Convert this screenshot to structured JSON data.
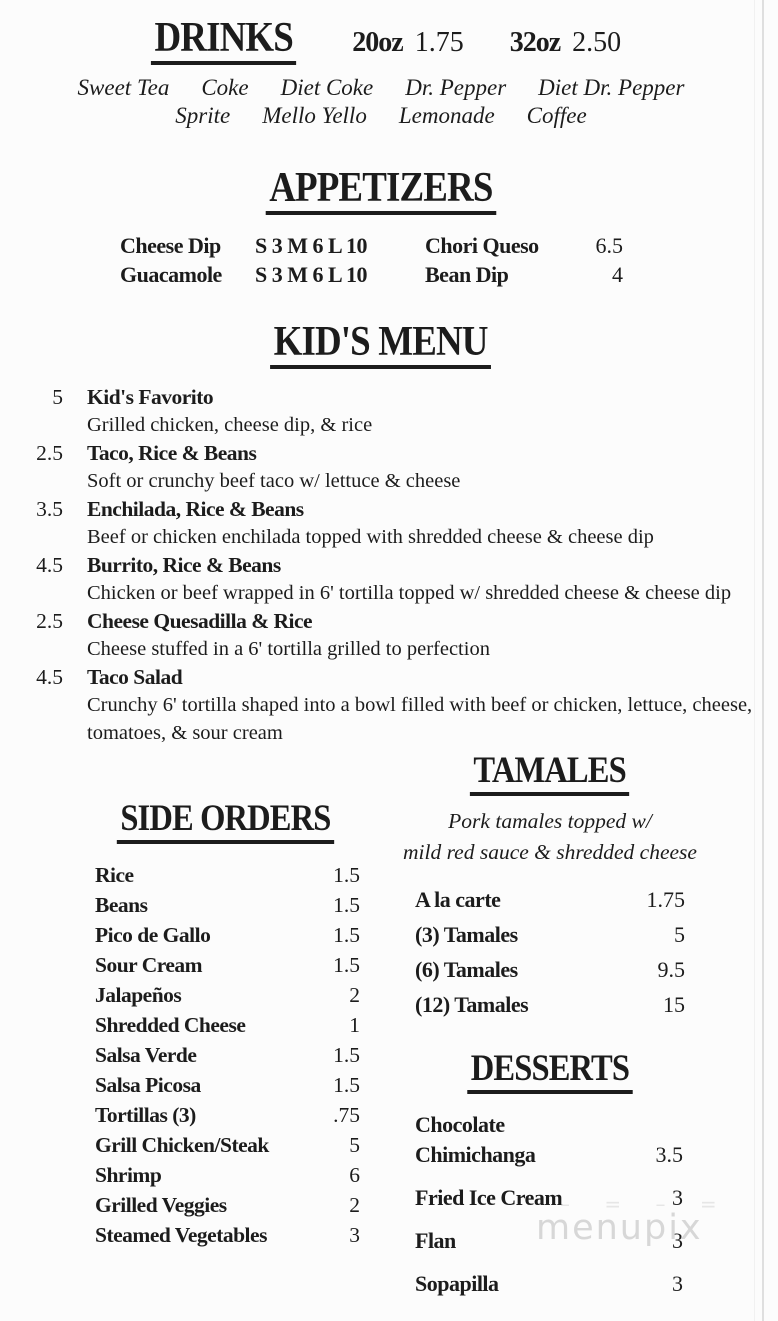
{
  "watermark": {
    "text": "menupix",
    "dashes": "– = – =",
    "color": "#d7d7d7"
  },
  "ink_color": "#1c1c1c",
  "drinks": {
    "title": "DRINKS",
    "sizes": [
      {
        "size": "20oz",
        "price": "1.75"
      },
      {
        "size": "32oz",
        "price": "2.50"
      }
    ],
    "row1": [
      "Sweet Tea",
      "Coke",
      "Diet Coke",
      "Dr. Pepper",
      "Diet Dr. Pepper"
    ],
    "row2": [
      "Sprite",
      "Mello Yello",
      "Lemonade",
      "Coffee"
    ]
  },
  "appetizers": {
    "title": "APPETIZERS",
    "rows": [
      {
        "name": "Cheese Dip",
        "sizes": "S 3  M 6  L 10",
        "name2": "Chori Queso",
        "price2": "6.5"
      },
      {
        "name": "Guacamole",
        "sizes": "S 3  M 6  L 10",
        "name2": "Bean Dip",
        "price2": "4"
      }
    ]
  },
  "kids_menu": {
    "title": "KID'S MENU",
    "items": [
      {
        "price": "5",
        "name": "Kid's Favorito",
        "description": "Grilled chicken, cheese dip, & rice"
      },
      {
        "price": "2.5",
        "name": "Taco, Rice & Beans",
        "description": "Soft or crunchy beef taco w/ lettuce & cheese"
      },
      {
        "price": "3.5",
        "name": "Enchilada, Rice & Beans",
        "description": "Beef or chicken enchilada topped with shredded cheese & cheese dip"
      },
      {
        "price": "4.5",
        "name": "Burrito, Rice & Beans",
        "description": "Chicken or beef wrapped in  6' tortilla topped w/ shredded cheese & cheese dip"
      },
      {
        "price": "2.5",
        "name": "Cheese Quesadilla & Rice",
        "description": "Cheese stuffed in a 6' tortilla grilled to perfection"
      },
      {
        "price": "4.5",
        "name": "Taco Salad",
        "description": "Crunchy 6' tortilla shaped into a bowl filled with beef or chicken, lettuce, cheese, tomatoes, & sour cream"
      }
    ]
  },
  "side_orders": {
    "title": "SIDE ORDERS",
    "items": [
      {
        "name": "Rice",
        "price": "1.5"
      },
      {
        "name": "Beans",
        "price": "1.5"
      },
      {
        "name": "Pico de Gallo",
        "price": "1.5"
      },
      {
        "name": "Sour Cream",
        "price": "1.5"
      },
      {
        "name": "Jalapeños",
        "price": "2"
      },
      {
        "name": "Shredded Cheese",
        "price": "1"
      },
      {
        "name": "Salsa Verde",
        "price": "1.5"
      },
      {
        "name": "Salsa Picosa",
        "price": "1.5"
      },
      {
        "name": "Tortillas (3)",
        "price": ".75"
      },
      {
        "name": "Grill Chicken/Steak",
        "price": "5"
      },
      {
        "name": "Shrimp",
        "price": "6"
      },
      {
        "name": "Grilled Veggies",
        "price": "2"
      },
      {
        "name": "Steamed Vegetables",
        "price": "3"
      }
    ]
  },
  "tamales": {
    "title": "TAMALES",
    "note_line1": "Pork tamales topped w/",
    "note_line2": "mild red sauce & shredded cheese",
    "items": [
      {
        "name": "A la carte",
        "price": "1.75"
      },
      {
        "name": "(3) Tamales",
        "price": "5"
      },
      {
        "name": "(6) Tamales",
        "price": "9.5"
      },
      {
        "name": "(12) Tamales",
        "price": "15"
      }
    ]
  },
  "desserts": {
    "title": "DESSERTS",
    "items": [
      {
        "name": "Chocolate Chimichanga",
        "price": "3.5"
      },
      {
        "name": "Fried Ice Cream",
        "price": "3"
      },
      {
        "name": "Flan",
        "price": "3"
      },
      {
        "name": "Sopapilla",
        "price": "3"
      }
    ]
  }
}
